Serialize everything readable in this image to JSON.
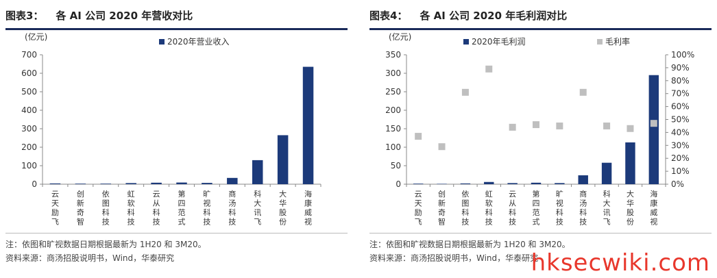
{
  "left": {
    "title_num": "图表3：",
    "title_text": "各 AI 公司 2020 年营收对比",
    "note": "注：依图和旷视数据日期根据最新为 1H20 和 3M20。",
    "source": "资料来源：商汤招股说明书，Wind，华泰研究"
  },
  "right": {
    "title_num": "图表4：",
    "title_text": "各 AI 公司 2020 年毛利润对比",
    "note": "注：依图和旷视数据日期根据最新为 1H20 和 3M20。",
    "source": "资料来源：商汤招股说明书，Wind，华泰研究"
  },
  "watermark": "hksecwiki.com",
  "colors": {
    "bar": "#1c3a7a",
    "marker": "#bfbfbf",
    "axis": "#888888"
  },
  "chart_data": [
    {
      "type": "bar",
      "unit_label": "(亿元)",
      "categories": [
        "云天励飞",
        "创新奇智",
        "依图科技",
        "虹软科技",
        "云从科技",
        "第四范式",
        "旷视科技",
        "商汤科技",
        "科大讯飞",
        "大华股份",
        "海康威视"
      ],
      "series": [
        {
          "name": "2020年营业收入",
          "values": [
            4,
            3,
            3,
            6,
            8,
            9,
            7,
            34,
            130,
            265,
            635
          ]
        }
      ],
      "ylim": [
        0,
        700
      ],
      "yticks": [
        0,
        100,
        200,
        300,
        400,
        500,
        600,
        700
      ],
      "legend": "top"
    },
    {
      "type": "bar",
      "unit_label": "(亿元)",
      "categories": [
        "云天励飞",
        "创新奇智",
        "依图科技",
        "虹软科技",
        "云从科技",
        "第四范式",
        "旷视科技",
        "商汤科技",
        "科大讯飞",
        "大华股份",
        "海康威视"
      ],
      "series": [
        {
          "name": "2020年毛利润",
          "values": [
            1.5,
            1,
            2,
            6,
            3,
            4,
            3,
            24,
            58,
            113,
            295
          ]
        },
        {
          "name": "毛利率",
          "axis": "right",
          "values": [
            0.37,
            0.29,
            0.71,
            0.89,
            0.44,
            0.46,
            0.45,
            0.71,
            0.45,
            0.43,
            0.47
          ]
        }
      ],
      "ylim": [
        0,
        350
      ],
      "yticks": [
        0,
        50,
        100,
        150,
        200,
        250,
        300,
        350
      ],
      "y2lim": [
        0,
        1
      ],
      "y2ticks": [
        "0%",
        "10%",
        "20%",
        "30%",
        "40%",
        "50%",
        "60%",
        "70%",
        "80%",
        "90%",
        "100%"
      ],
      "legend": "top"
    }
  ]
}
